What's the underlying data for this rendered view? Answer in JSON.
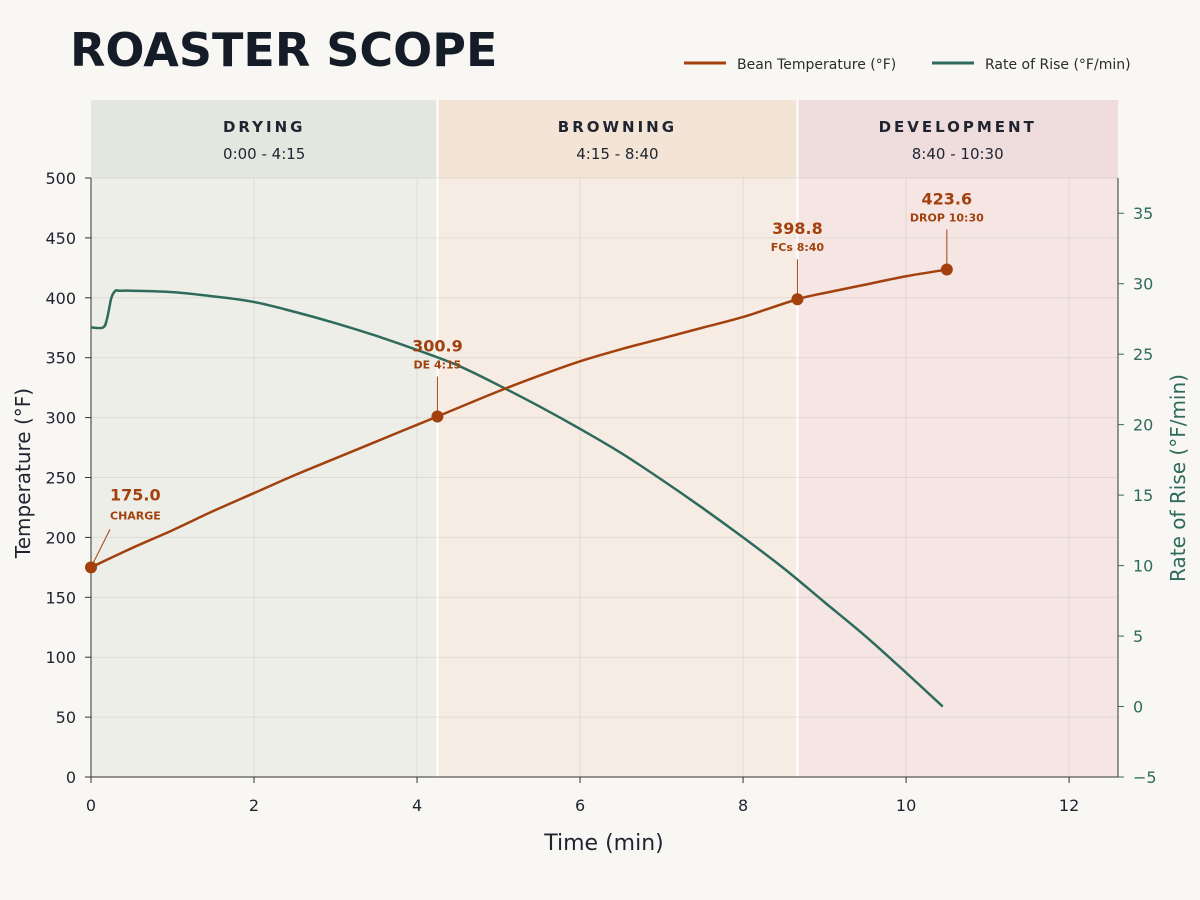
{
  "title": "ROASTER SCOPE",
  "colors": {
    "bean": "#a3410e",
    "ror": "#2e6b5c",
    "drying_band": "#e4e6e0",
    "drying_fill": "#eeeee8",
    "browning_band": "#f3e4d6",
    "browning_fill": "#f6ece4",
    "development_band": "#efdcdc",
    "development_fill": "#f5e6e4"
  },
  "chart_data": {
    "type": "line",
    "xlabel": "Time (min)",
    "ylabel": "Temperature (°F)",
    "y2label": "Rate of Rise (°F/min)",
    "xlim": [
      0,
      12.6
    ],
    "ylim": [
      0,
      500
    ],
    "y2lim": [
      -5,
      37.5
    ],
    "xticks": [
      0,
      2,
      4,
      6,
      8,
      10,
      12
    ],
    "yticks": [
      0,
      50,
      100,
      150,
      200,
      250,
      300,
      350,
      400,
      450,
      500
    ],
    "y2ticks": [
      -5,
      0,
      5,
      10,
      15,
      20,
      25,
      30,
      35
    ],
    "grid": true,
    "legend": {
      "placement": "top-right",
      "entries": [
        "Bean Temperature (°F)",
        "Rate of Rise (°F/min)"
      ]
    },
    "phases": [
      {
        "name": "DRYING",
        "range": "0:00 - 4:15",
        "start": 0,
        "end": 4.25
      },
      {
        "name": "BROWNING",
        "range": "4:15 - 8:40",
        "start": 4.25,
        "end": 8.667
      },
      {
        "name": "DEVELOPMENT",
        "range": "8:40 - 10:30",
        "start": 8.667,
        "end": 12.6
      }
    ],
    "series": [
      {
        "name": "Bean Temperature (°F)",
        "axis": "left",
        "x": [
          0,
          0.5,
          1,
          1.5,
          2,
          2.5,
          3,
          3.5,
          4,
          4.25,
          4.5,
          5,
          5.5,
          6,
          6.5,
          7,
          7.5,
          8,
          8.667,
          9,
          9.5,
          10,
          10.5
        ],
        "values": [
          175,
          191,
          206,
          222,
          237,
          252,
          266,
          280,
          294,
          300.9,
          308,
          322,
          335,
          347,
          357,
          366,
          375,
          384,
          398.8,
          404,
          411,
          418,
          423.6
        ]
      },
      {
        "name": "Rate of Rise (°F/min)",
        "axis": "right",
        "x": [
          0,
          0.15,
          0.2,
          0.25,
          0.3,
          0.35,
          0.5,
          1,
          1.5,
          2,
          2.5,
          3,
          3.5,
          4,
          4.5,
          5,
          5.5,
          6,
          6.5,
          7,
          7.5,
          8,
          8.5,
          9,
          9.5,
          10,
          10.45
        ],
        "values": [
          26.9,
          26.9,
          27.6,
          29.0,
          29.5,
          29.5,
          29.5,
          29.4,
          29.1,
          28.7,
          28.0,
          27.2,
          26.3,
          25.3,
          24.2,
          22.8,
          21.3,
          19.7,
          18.0,
          16.1,
          14.1,
          12.0,
          9.8,
          7.4,
          5.0,
          2.4,
          0.0
        ]
      }
    ],
    "annotations": [
      {
        "x": 0,
        "y": 175,
        "value": "175.0",
        "label": "CHARGE"
      },
      {
        "x": 4.25,
        "y": 300.9,
        "value": "300.9",
        "label": "DE 4:15"
      },
      {
        "x": 8.667,
        "y": 398.8,
        "value": "398.8",
        "label": "FCs 8:40"
      },
      {
        "x": 10.5,
        "y": 423.6,
        "value": "423.6",
        "label": "DROP 10:30"
      }
    ]
  }
}
